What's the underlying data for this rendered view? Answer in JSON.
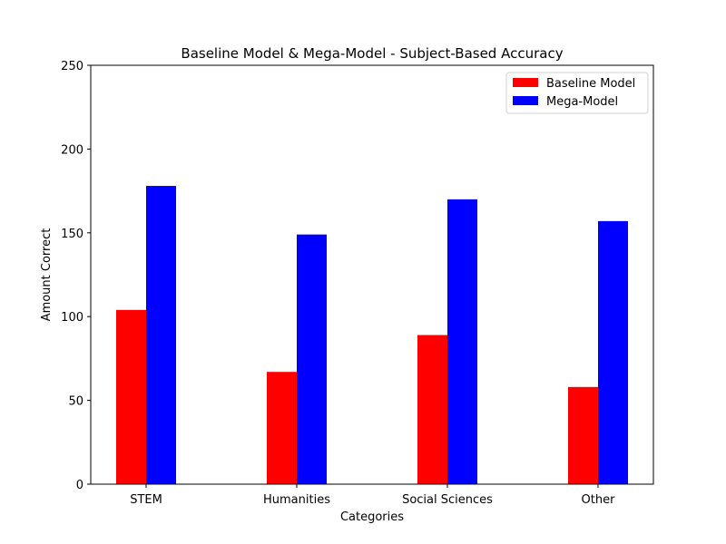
{
  "chart_data": {
    "type": "bar",
    "title": "Baseline Model & Mega-Model - Subject-Based Accuracy",
    "xlabel": "Categories",
    "ylabel": "Amount Correct",
    "categories": [
      "STEM",
      "Humanities",
      "Social Sciences",
      "Other"
    ],
    "series": [
      {
        "name": "Baseline Model",
        "color": "#ff0000",
        "values": [
          104,
          67,
          89,
          58
        ]
      },
      {
        "name": "Mega-Model",
        "color": "#0000ff",
        "values": [
          178,
          149,
          170,
          157
        ]
      }
    ],
    "ylim": [
      0,
      250
    ],
    "yticks": [
      0,
      50,
      100,
      150,
      200,
      250
    ],
    "grid": false,
    "legend_position": "top-right"
  }
}
